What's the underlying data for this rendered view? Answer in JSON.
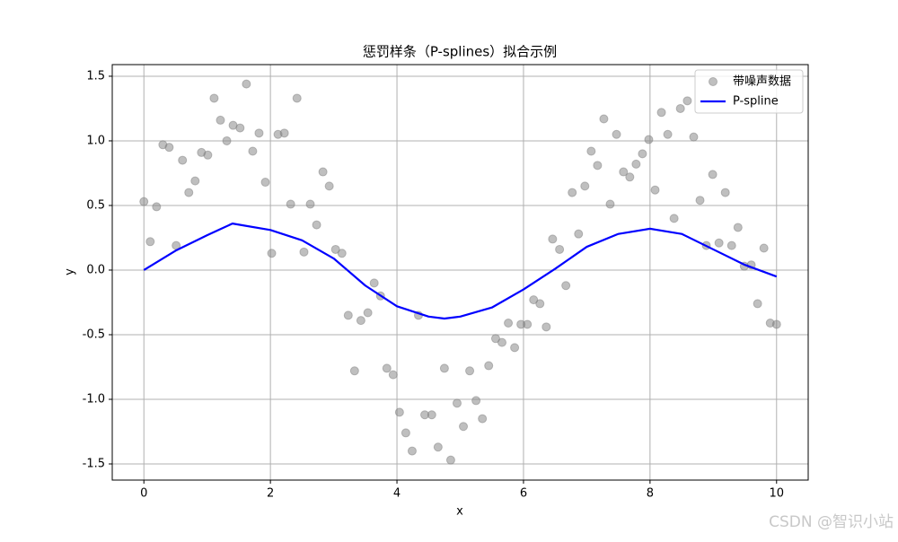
{
  "chart_data": {
    "type": "scatter",
    "title": "惩罚样条（P-splines）拟合示例",
    "xlabel": "x",
    "ylabel": "y",
    "xlim": [
      -0.5,
      10.5
    ],
    "ylim": [
      -1.625,
      1.59
    ],
    "xticks": [
      0,
      2,
      4,
      6,
      8,
      10
    ],
    "yticks": [
      -1.5,
      {
        "value": -1,
        "label": "-1.0"
      },
      -0.5,
      {
        "value": 0,
        "label": "0.0"
      },
      0.5,
      {
        "value": 1,
        "label": "1.0"
      },
      1.5
    ],
    "grid": true,
    "legend": "upper right",
    "watermark": "CSDN @智识小站",
    "series": [
      {
        "name": "带噪声数据",
        "type": "scatter",
        "color": "#808080",
        "x": [
          0,
          0.1,
          0.2,
          0.3,
          0.4,
          0.51,
          0.61,
          0.71,
          0.81,
          0.91,
          1.01,
          1.11,
          1.21,
          1.31,
          1.41,
          1.52,
          1.62,
          1.72,
          1.82,
          1.92,
          2.02,
          2.12,
          2.22,
          2.32,
          2.42,
          2.53,
          2.63,
          2.73,
          2.83,
          2.93,
          3.03,
          3.13,
          3.23,
          3.33,
          3.43,
          3.54,
          3.64,
          3.74,
          3.84,
          3.94,
          4.04,
          4.14,
          4.24,
          4.34,
          4.44,
          4.55,
          4.65,
          4.75,
          4.85,
          4.95,
          5.05,
          5.15,
          5.25,
          5.35,
          5.45,
          5.56,
          5.66,
          5.76,
          5.86,
          5.96,
          6.06,
          6.16,
          6.26,
          6.36,
          6.46,
          6.57,
          6.67,
          6.77,
          6.87,
          6.97,
          7.07,
          7.17,
          7.27,
          7.37,
          7.47,
          7.58,
          7.68,
          7.78,
          7.88,
          7.98,
          8.08,
          8.18,
          8.28,
          8.38,
          8.48,
          8.59,
          8.69,
          8.79,
          8.89,
          8.99,
          9.09,
          9.19,
          9.29,
          9.39,
          9.49,
          9.6,
          9.7,
          9.8,
          9.9,
          10
        ],
        "values": [
          0.53,
          0.22,
          0.49,
          0.97,
          0.95,
          0.19,
          0.85,
          0.6,
          0.69,
          0.91,
          0.89,
          1.33,
          1.16,
          1.0,
          1.12,
          1.1,
          1.44,
          0.92,
          1.06,
          0.68,
          0.13,
          1.05,
          1.06,
          0.51,
          1.33,
          0.14,
          0.51,
          0.35,
          0.76,
          0.65,
          0.16,
          0.13,
          -0.35,
          -0.78,
          -0.39,
          -0.33,
          -0.1,
          -0.2,
          -0.76,
          -0.81,
          -1.1,
          -1.26,
          -1.4,
          -0.35,
          -1.12,
          -1.12,
          -1.37,
          -0.76,
          -1.47,
          -1.03,
          -1.21,
          -0.78,
          -1.01,
          -1.15,
          -0.74,
          -0.53,
          -0.56,
          -0.41,
          -0.6,
          -0.42,
          -0.42,
          -0.23,
          -0.26,
          -0.44,
          0.24,
          0.16,
          -0.12,
          0.6,
          0.28,
          0.65,
          0.92,
          0.81,
          1.17,
          0.51,
          1.05,
          0.76,
          0.72,
          0.82,
          0.9,
          1.01,
          0.62,
          1.22,
          1.05,
          0.4,
          1.25,
          1.31,
          1.03,
          0.54,
          0.19,
          0.74,
          0.21,
          0.6,
          0.19,
          0.33,
          0.03,
          0.04,
          -0.26,
          0.17,
          -0.41,
          -0.42
        ]
      },
      {
        "name": "P-spline",
        "type": "line",
        "color": "#0000ff",
        "x": [
          0,
          0.5,
          1,
          1.4,
          2,
          2.5,
          3,
          3.5,
          4,
          4.5,
          4.75,
          5,
          5.5,
          6,
          6.5,
          7,
          7.5,
          8,
          8.5,
          9,
          9.5,
          10
        ],
        "values": [
          0,
          0.15,
          0.27,
          0.36,
          0.31,
          0.23,
          0.09,
          -0.12,
          -0.28,
          -0.36,
          -0.375,
          -0.36,
          -0.29,
          -0.15,
          0.01,
          0.18,
          0.28,
          0.32,
          0.28,
          0.16,
          0.04,
          -0.05
        ]
      }
    ]
  }
}
